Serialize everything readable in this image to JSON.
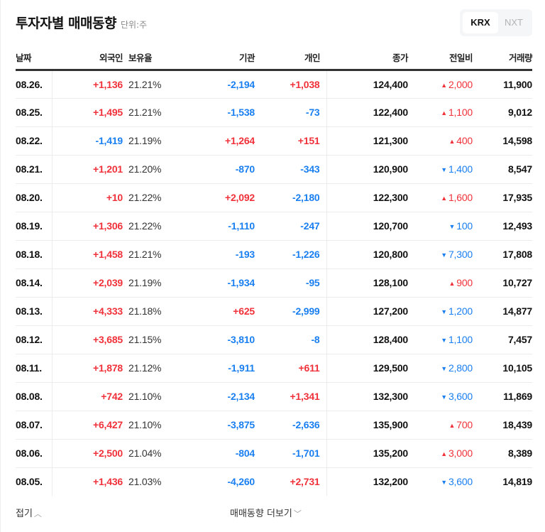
{
  "header": {
    "title": "투자자별 매매동향",
    "unit": "단위:주",
    "market_toggle": {
      "options": [
        "KRX",
        "NXT"
      ],
      "selected": "KRX"
    }
  },
  "colors": {
    "up": "#f0313a",
    "down": "#1a7ff0",
    "text": "#111111"
  },
  "table": {
    "columns": [
      "날짜",
      "외국인",
      "보유율",
      "기관",
      "개인",
      "종가",
      "전일비",
      "거래량"
    ],
    "rows": [
      {
        "date": "08.26.",
        "foreign": "+1,136",
        "ratio": "21.21%",
        "inst": "-2,194",
        "indiv": "+1,038",
        "close": "124,400",
        "chg_dir": "up",
        "chg": "2,000",
        "vol": "11,900"
      },
      {
        "date": "08.25.",
        "foreign": "+1,495",
        "ratio": "21.21%",
        "inst": "-1,538",
        "indiv": "-73",
        "close": "122,400",
        "chg_dir": "up",
        "chg": "1,100",
        "vol": "9,012"
      },
      {
        "date": "08.22.",
        "foreign": "-1,419",
        "ratio": "21.19%",
        "inst": "+1,264",
        "indiv": "+151",
        "close": "121,300",
        "chg_dir": "up",
        "chg": "400",
        "vol": "14,598"
      },
      {
        "date": "08.21.",
        "foreign": "+1,201",
        "ratio": "21.20%",
        "inst": "-870",
        "indiv": "-343",
        "close": "120,900",
        "chg_dir": "down",
        "chg": "1,400",
        "vol": "8,547"
      },
      {
        "date": "08.20.",
        "foreign": "+10",
        "ratio": "21.22%",
        "inst": "+2,092",
        "indiv": "-2,180",
        "close": "122,300",
        "chg_dir": "up",
        "chg": "1,600",
        "vol": "17,935"
      },
      {
        "date": "08.19.",
        "foreign": "+1,306",
        "ratio": "21.22%",
        "inst": "-1,110",
        "indiv": "-247",
        "close": "120,700",
        "chg_dir": "down",
        "chg": "100",
        "vol": "12,493"
      },
      {
        "date": "08.18.",
        "foreign": "+1,458",
        "ratio": "21.21%",
        "inst": "-193",
        "indiv": "-1,226",
        "close": "120,800",
        "chg_dir": "down",
        "chg": "7,300",
        "vol": "17,808"
      },
      {
        "date": "08.14.",
        "foreign": "+2,039",
        "ratio": "21.19%",
        "inst": "-1,934",
        "indiv": "-95",
        "close": "128,100",
        "chg_dir": "up",
        "chg": "900",
        "vol": "10,727"
      },
      {
        "date": "08.13.",
        "foreign": "+4,333",
        "ratio": "21.18%",
        "inst": "+625",
        "indiv": "-2,999",
        "close": "127,200",
        "chg_dir": "down",
        "chg": "1,200",
        "vol": "14,877"
      },
      {
        "date": "08.12.",
        "foreign": "+3,685",
        "ratio": "21.15%",
        "inst": "-3,810",
        "indiv": "-8",
        "close": "128,400",
        "chg_dir": "down",
        "chg": "1,100",
        "vol": "7,457"
      },
      {
        "date": "08.11.",
        "foreign": "+1,878",
        "ratio": "21.12%",
        "inst": "-1,911",
        "indiv": "+611",
        "close": "129,500",
        "chg_dir": "down",
        "chg": "2,800",
        "vol": "10,105"
      },
      {
        "date": "08.08.",
        "foreign": "+742",
        "ratio": "21.10%",
        "inst": "-2,134",
        "indiv": "+1,341",
        "close": "132,300",
        "chg_dir": "down",
        "chg": "3,600",
        "vol": "11,869"
      },
      {
        "date": "08.07.",
        "foreign": "+6,427",
        "ratio": "21.10%",
        "inst": "-3,875",
        "indiv": "-2,636",
        "close": "135,900",
        "chg_dir": "up",
        "chg": "700",
        "vol": "18,439"
      },
      {
        "date": "08.06.",
        "foreign": "+2,500",
        "ratio": "21.04%",
        "inst": "-804",
        "indiv": "-1,701",
        "close": "135,200",
        "chg_dir": "up",
        "chg": "3,000",
        "vol": "8,389"
      },
      {
        "date": "08.05.",
        "foreign": "+1,436",
        "ratio": "21.03%",
        "inst": "-4,260",
        "indiv": "+2,731",
        "close": "132,200",
        "chg_dir": "down",
        "chg": "3,600",
        "vol": "14,819"
      }
    ]
  },
  "icons": {
    "up": "▲",
    "down": "▼",
    "chevron_up": "﹀",
    "chevron_down": "﹀"
  },
  "footer": {
    "fold_label": "접기",
    "fold_icon": "chevron-up-icon",
    "more_label": "매매동향 더보기",
    "more_icon": "chevron-down-icon"
  }
}
